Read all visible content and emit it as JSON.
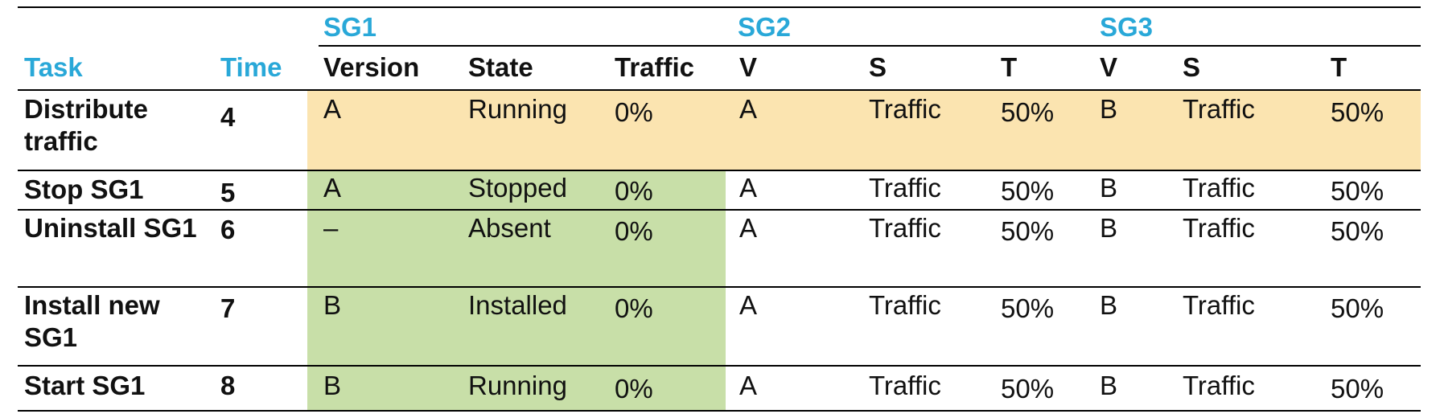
{
  "header": {
    "groups": [
      "SG1",
      "SG2",
      "SG3"
    ],
    "task_label": "Task",
    "time_label": "Time",
    "columns": [
      "Version",
      "State",
      "Traffic",
      "V",
      "S",
      "T",
      "V",
      "S",
      "T"
    ]
  },
  "rows": [
    {
      "task": "Distribute traffic",
      "time": "4",
      "cells": [
        "A",
        "Running",
        "0%",
        "A",
        "Traffic",
        "50%",
        "B",
        "Traffic",
        "50%"
      ]
    },
    {
      "task": "Stop SG1",
      "time": "5",
      "cells": [
        "A",
        "Stopped",
        "0%",
        "A",
        "Traffic",
        "50%",
        "B",
        "Traffic",
        "50%"
      ]
    },
    {
      "task": "Uninstall SG1",
      "time": "6",
      "cells": [
        "–",
        "Absent",
        "0%",
        "A",
        "Traffic",
        "50%",
        "B",
        "Traffic",
        "50%"
      ]
    },
    {
      "task": "Install new SG1",
      "time": "7",
      "cells": [
        "B",
        "Installed",
        "0%",
        "A",
        "Traffic",
        "50%",
        "B",
        "Traffic",
        "50%"
      ]
    },
    {
      "task": "Start SG1",
      "time": "8",
      "cells": [
        "B",
        "Running",
        "0%",
        "A",
        "Traffic",
        "50%",
        "B",
        "Traffic",
        "50%"
      ]
    }
  ],
  "colors": {
    "header_text": "#29a8d8",
    "highlight_orange": "#fbe4b0",
    "highlight_green": "#c8dfa8"
  }
}
